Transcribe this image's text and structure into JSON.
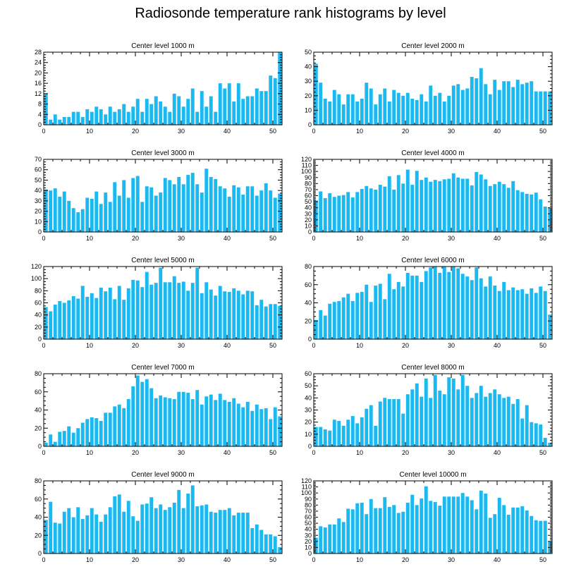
{
  "figure_title": "Radiosonde temperature rank histograms by level",
  "colors": {
    "bar": "#1cb8f0",
    "axis": "#000000",
    "background": "#ffffff"
  },
  "chart_data": [
    {
      "type": "bar",
      "title": "Center level 1000 m",
      "xlabel": "",
      "ylabel": "",
      "xlim": [
        0,
        52
      ],
      "ylim": [
        0,
        28
      ],
      "yticks": [
        0,
        4,
        8,
        12,
        16,
        20,
        24,
        28
      ],
      "xticks": [
        0,
        10,
        20,
        30,
        40,
        50
      ],
      "values": [
        12,
        2,
        4,
        2,
        3,
        3,
        5,
        5,
        3,
        6,
        5,
        7,
        6,
        4,
        7,
        5,
        6,
        8,
        5,
        7,
        10,
        5,
        10,
        8,
        11,
        9,
        7,
        5,
        12,
        11,
        7,
        10,
        14,
        5,
        13,
        7,
        11,
        5,
        16,
        14,
        16,
        9,
        16,
        10,
        11,
        11,
        14,
        13,
        13,
        19,
        18,
        28
      ]
    },
    {
      "type": "bar",
      "title": "Center level 2000 m",
      "xlabel": "",
      "ylabel": "",
      "xlim": [
        0,
        52
      ],
      "ylim": [
        0,
        50
      ],
      "yticks": [
        0,
        10,
        20,
        30,
        40,
        50
      ],
      "xticks": [
        0,
        10,
        20,
        30,
        40,
        50
      ],
      "values": [
        42,
        29,
        18,
        16,
        24,
        21,
        14,
        21,
        21,
        16,
        18,
        29,
        25,
        14,
        21,
        25,
        16,
        24,
        22,
        20,
        22,
        18,
        17,
        21,
        16,
        27,
        20,
        22,
        16,
        20,
        27,
        28,
        24,
        25,
        33,
        32,
        39,
        28,
        21,
        31,
        24,
        30,
        30,
        26,
        31,
        28,
        29,
        30,
        23,
        23,
        23,
        23
      ]
    },
    {
      "type": "bar",
      "title": "Center level 3000 m",
      "xlabel": "",
      "ylabel": "",
      "xlim": [
        0,
        52
      ],
      "ylim": [
        0,
        70
      ],
      "yticks": [
        0,
        10,
        20,
        30,
        40,
        50,
        60,
        70
      ],
      "xticks": [
        0,
        10,
        20,
        30,
        40,
        50
      ],
      "values": [
        41,
        40,
        42,
        34,
        39,
        30,
        23,
        19,
        22,
        33,
        32,
        39,
        27,
        38,
        29,
        48,
        35,
        50,
        33,
        52,
        54,
        29,
        44,
        43,
        35,
        38,
        52,
        50,
        46,
        53,
        46,
        55,
        57,
        46,
        38,
        61,
        53,
        51,
        44,
        42,
        34,
        45,
        43,
        36,
        44,
        44,
        35,
        40,
        47,
        40,
        33,
        37
      ]
    },
    {
      "type": "bar",
      "title": "Center level 4000 m",
      "xlabel": "",
      "ylabel": "",
      "xlim": [
        0,
        52
      ],
      "ylim": [
        0,
        120
      ],
      "yticks": [
        0,
        10,
        20,
        30,
        40,
        50,
        60,
        70,
        80,
        90,
        100,
        110,
        120
      ],
      "xticks": [
        0,
        10,
        20,
        30,
        40,
        50
      ],
      "values": [
        52,
        67,
        56,
        64,
        58,
        60,
        61,
        66,
        57,
        66,
        71,
        76,
        72,
        70,
        78,
        75,
        92,
        70,
        94,
        80,
        103,
        78,
        101,
        86,
        90,
        83,
        86,
        84,
        87,
        88,
        97,
        90,
        88,
        88,
        77,
        99,
        95,
        87,
        76,
        79,
        83,
        79,
        73,
        84,
        69,
        66,
        63,
        62,
        65,
        54,
        42,
        40
      ]
    },
    {
      "type": "bar",
      "title": "Center level 5000 m",
      "xlabel": "",
      "ylabel": "",
      "xlim": [
        0,
        52
      ],
      "ylim": [
        0,
        120
      ],
      "yticks": [
        0,
        20,
        40,
        60,
        80,
        100,
        120
      ],
      "xticks": [
        0,
        10,
        20,
        30,
        40,
        50
      ],
      "values": [
        53,
        46,
        57,
        63,
        60,
        64,
        71,
        67,
        88,
        70,
        76,
        68,
        85,
        79,
        85,
        66,
        88,
        65,
        84,
        98,
        97,
        86,
        111,
        90,
        93,
        118,
        94,
        94,
        104,
        93,
        95,
        80,
        93,
        118,
        76,
        94,
        82,
        72,
        88,
        79,
        78,
        84,
        80,
        74,
        80,
        79,
        56,
        65,
        54,
        58,
        58,
        55
      ]
    },
    {
      "type": "bar",
      "title": "Center level 6000 m",
      "xlabel": "",
      "ylabel": "",
      "xlim": [
        0,
        52
      ],
      "ylim": [
        0,
        80
      ],
      "yticks": [
        0,
        20,
        40,
        60,
        80
      ],
      "xticks": [
        0,
        10,
        20,
        30,
        40,
        50
      ],
      "values": [
        21,
        32,
        26,
        39,
        41,
        42,
        46,
        50,
        42,
        51,
        52,
        60,
        41,
        59,
        61,
        44,
        72,
        55,
        63,
        58,
        73,
        70,
        70,
        63,
        75,
        79,
        80,
        73,
        80,
        74,
        80,
        78,
        72,
        69,
        65,
        79,
        67,
        58,
        69,
        59,
        53,
        63,
        54,
        57,
        54,
        55,
        50,
        56,
        51,
        58,
        53,
        27
      ]
    },
    {
      "type": "bar",
      "title": "Center level 7000 m",
      "xlabel": "",
      "ylabel": "",
      "xlim": [
        0,
        52
      ],
      "ylim": [
        0,
        80
      ],
      "yticks": [
        0,
        20,
        40,
        60,
        80
      ],
      "xticks": [
        0,
        10,
        20,
        30,
        40,
        50
      ],
      "values": [
        4,
        13,
        5,
        16,
        17,
        22,
        15,
        20,
        26,
        30,
        32,
        31,
        28,
        37,
        37,
        44,
        46,
        42,
        52,
        66,
        78,
        71,
        74,
        64,
        53,
        56,
        54,
        53,
        52,
        60,
        60,
        59,
        52,
        62,
        46,
        55,
        57,
        51,
        58,
        51,
        49,
        53,
        47,
        43,
        49,
        39,
        46,
        41,
        42,
        30,
        43,
        33
      ]
    },
    {
      "type": "bar",
      "title": "Center level 8000 m",
      "xlabel": "",
      "ylabel": "",
      "xlim": [
        0,
        52
      ],
      "ylim": [
        0,
        60
      ],
      "yticks": [
        0,
        10,
        20,
        30,
        40,
        50,
        60
      ],
      "xticks": [
        0,
        10,
        20,
        30,
        40,
        50
      ],
      "values": [
        16,
        16,
        14,
        13,
        22,
        21,
        17,
        22,
        25,
        19,
        24,
        31,
        34,
        17,
        37,
        40,
        39,
        39,
        39,
        27,
        43,
        47,
        52,
        41,
        56,
        40,
        59,
        46,
        43,
        57,
        56,
        47,
        59,
        50,
        40,
        44,
        50,
        41,
        44,
        47,
        43,
        40,
        41,
        35,
        39,
        23,
        34,
        20,
        19,
        18,
        7,
        3
      ]
    },
    {
      "type": "bar",
      "title": "Center level 9000 m",
      "xlabel": "",
      "ylabel": "",
      "xlim": [
        0,
        52
      ],
      "ylim": [
        0,
        80
      ],
      "yticks": [
        0,
        20,
        40,
        60,
        80
      ],
      "xticks": [
        0,
        10,
        20,
        30,
        40,
        50
      ],
      "values": [
        37,
        57,
        34,
        33,
        46,
        50,
        40,
        51,
        38,
        42,
        50,
        43,
        35,
        43,
        51,
        63,
        65,
        46,
        58,
        41,
        36,
        54,
        55,
        62,
        50,
        54,
        48,
        51,
        56,
        70,
        50,
        66,
        75,
        52,
        53,
        54,
        46,
        45,
        48,
        48,
        50,
        42,
        45,
        45,
        45,
        28,
        32,
        26,
        21,
        21,
        19,
        7
      ]
    },
    {
      "type": "bar",
      "title": "Center level 10000 m",
      "xlabel": "",
      "ylabel": "",
      "xlim": [
        0,
        52
      ],
      "ylim": [
        0,
        120
      ],
      "yticks": [
        0,
        10,
        20,
        30,
        40,
        50,
        60,
        70,
        80,
        90,
        100,
        110,
        120
      ],
      "xticks": [
        0,
        10,
        20,
        30,
        40,
        50
      ],
      "values": [
        26,
        45,
        43,
        48,
        48,
        58,
        52,
        74,
        73,
        83,
        84,
        65,
        90,
        75,
        75,
        93,
        77,
        80,
        67,
        69,
        84,
        97,
        80,
        91,
        111,
        87,
        85,
        79,
        94,
        94,
        94,
        94,
        100,
        94,
        88,
        73,
        104,
        99,
        59,
        65,
        92,
        80,
        64,
        76,
        76,
        78,
        71,
        62,
        55,
        54,
        54,
        20
      ]
    }
  ]
}
